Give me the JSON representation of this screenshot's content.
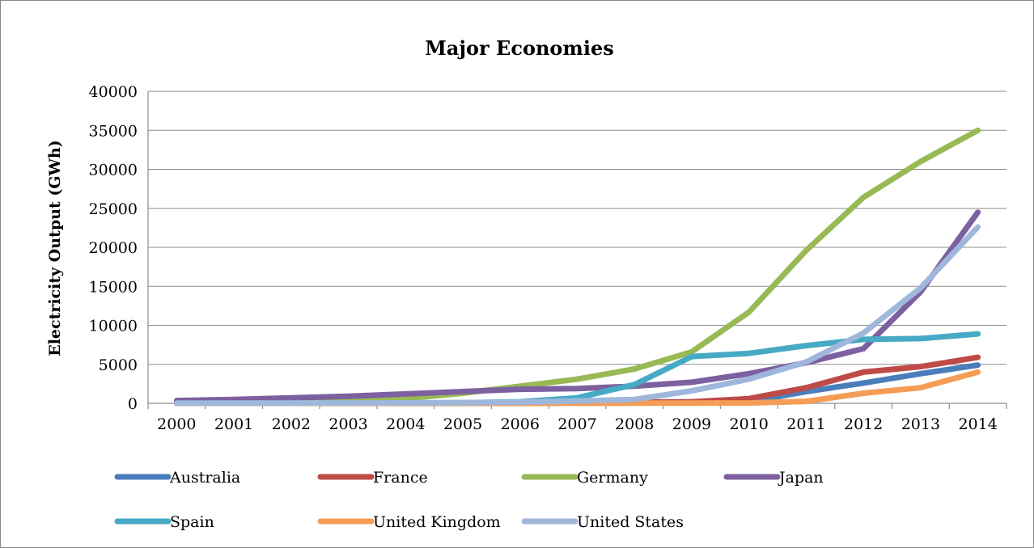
{
  "chart_data": {
    "type": "line",
    "title": "Major Economies",
    "xlabel": "",
    "ylabel": "Electricity Output (GWh)",
    "ylim": [
      0,
      40000
    ],
    "yticks": [
      "0",
      "5000",
      "10000",
      "15000",
      "20000",
      "25000",
      "30000",
      "35000",
      "40000"
    ],
    "categories": [
      "2000",
      "2001",
      "2002",
      "2003",
      "2004",
      "2005",
      "2006",
      "2007",
      "2008",
      "2009",
      "2010",
      "2011",
      "2012",
      "2013",
      "2014"
    ],
    "grid": "horizontal",
    "legend_position": "bottom",
    "series": [
      {
        "name": "Australia",
        "color": "#4a7ebb",
        "values": [
          10,
          20,
          30,
          40,
          50,
          60,
          80,
          100,
          130,
          160,
          200,
          1500,
          2600,
          3800,
          4900
        ]
      },
      {
        "name": "France",
        "color": "#be4b48",
        "values": [
          10,
          20,
          20,
          30,
          40,
          50,
          60,
          100,
          150,
          200,
          600,
          2000,
          4000,
          4700,
          5900
        ]
      },
      {
        "name": "Germany",
        "color": "#98b954",
        "values": [
          60,
          200,
          300,
          500,
          600,
          1300,
          2200,
          3100,
          4400,
          6600,
          11700,
          19600,
          26400,
          31000,
          35000
        ]
      },
      {
        "name": "Japan",
        "color": "#7d60a0",
        "values": [
          350,
          500,
          700,
          900,
          1200,
          1500,
          1800,
          1900,
          2200,
          2700,
          3800,
          5200,
          7000,
          14300,
          24500
        ]
      },
      {
        "name": "Spain",
        "color": "#46aac5",
        "values": [
          10,
          20,
          20,
          30,
          50,
          80,
          200,
          700,
          2400,
          6000,
          6400,
          7400,
          8200,
          8300,
          8900
        ]
      },
      {
        "name": "United Kingdom",
        "color": "#f59d56",
        "values": [
          0,
          0,
          0,
          0,
          0,
          0,
          0,
          10,
          20,
          30,
          40,
          250,
          1300,
          2000,
          4000
        ]
      },
      {
        "name": "United States",
        "color": "#a0b7dc",
        "values": [
          10,
          20,
          30,
          40,
          50,
          80,
          150,
          300,
          500,
          1600,
          3100,
          5300,
          9000,
          14800,
          22600
        ]
      }
    ]
  }
}
